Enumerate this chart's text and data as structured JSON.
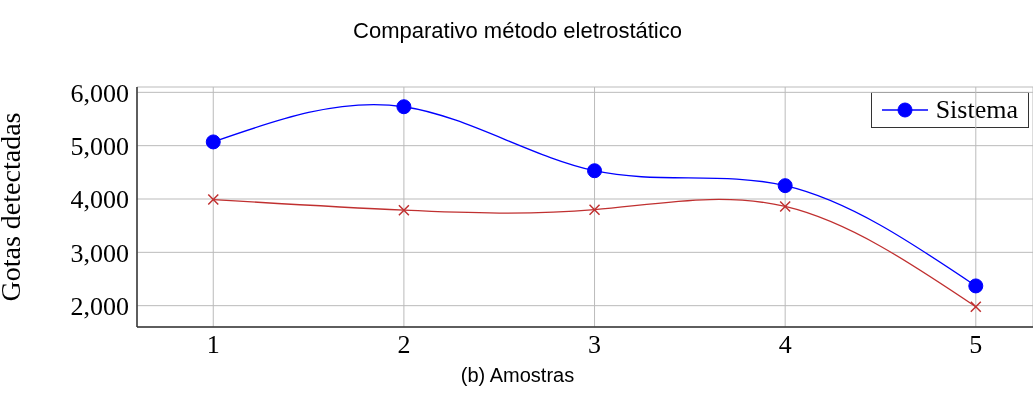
{
  "chart_data": {
    "type": "line",
    "title": "Comparativo método eletrostático",
    "xlabel": "(b) Amostras",
    "ylabel": "Gotas detectadas",
    "x": [
      1,
      2,
      3,
      4,
      5
    ],
    "xlim": [
      0.6,
      5.3
    ],
    "xticks": [
      1,
      2,
      3,
      4,
      5
    ],
    "ylim": [
      1600,
      6100
    ],
    "yticks": [
      {
        "value": 2000,
        "label": "2,000"
      },
      {
        "value": 3000,
        "label": "3,000"
      },
      {
        "value": 4000,
        "label": "4,000"
      },
      {
        "value": 5000,
        "label": "5,000"
      },
      {
        "value": 6000,
        "label": "6,000"
      }
    ],
    "grid": true,
    "legend": "top right",
    "line_style": "solid",
    "series": [
      {
        "name": "Sistema",
        "color": "#0000ff",
        "marker": "circle",
        "values": [
          5070,
          5730,
          4530,
          4250,
          2370
        ]
      },
      {
        "color": "#c03030",
        "marker": "cross",
        "values": [
          3990,
          3790,
          3800,
          3860,
          1980
        ]
      }
    ]
  }
}
